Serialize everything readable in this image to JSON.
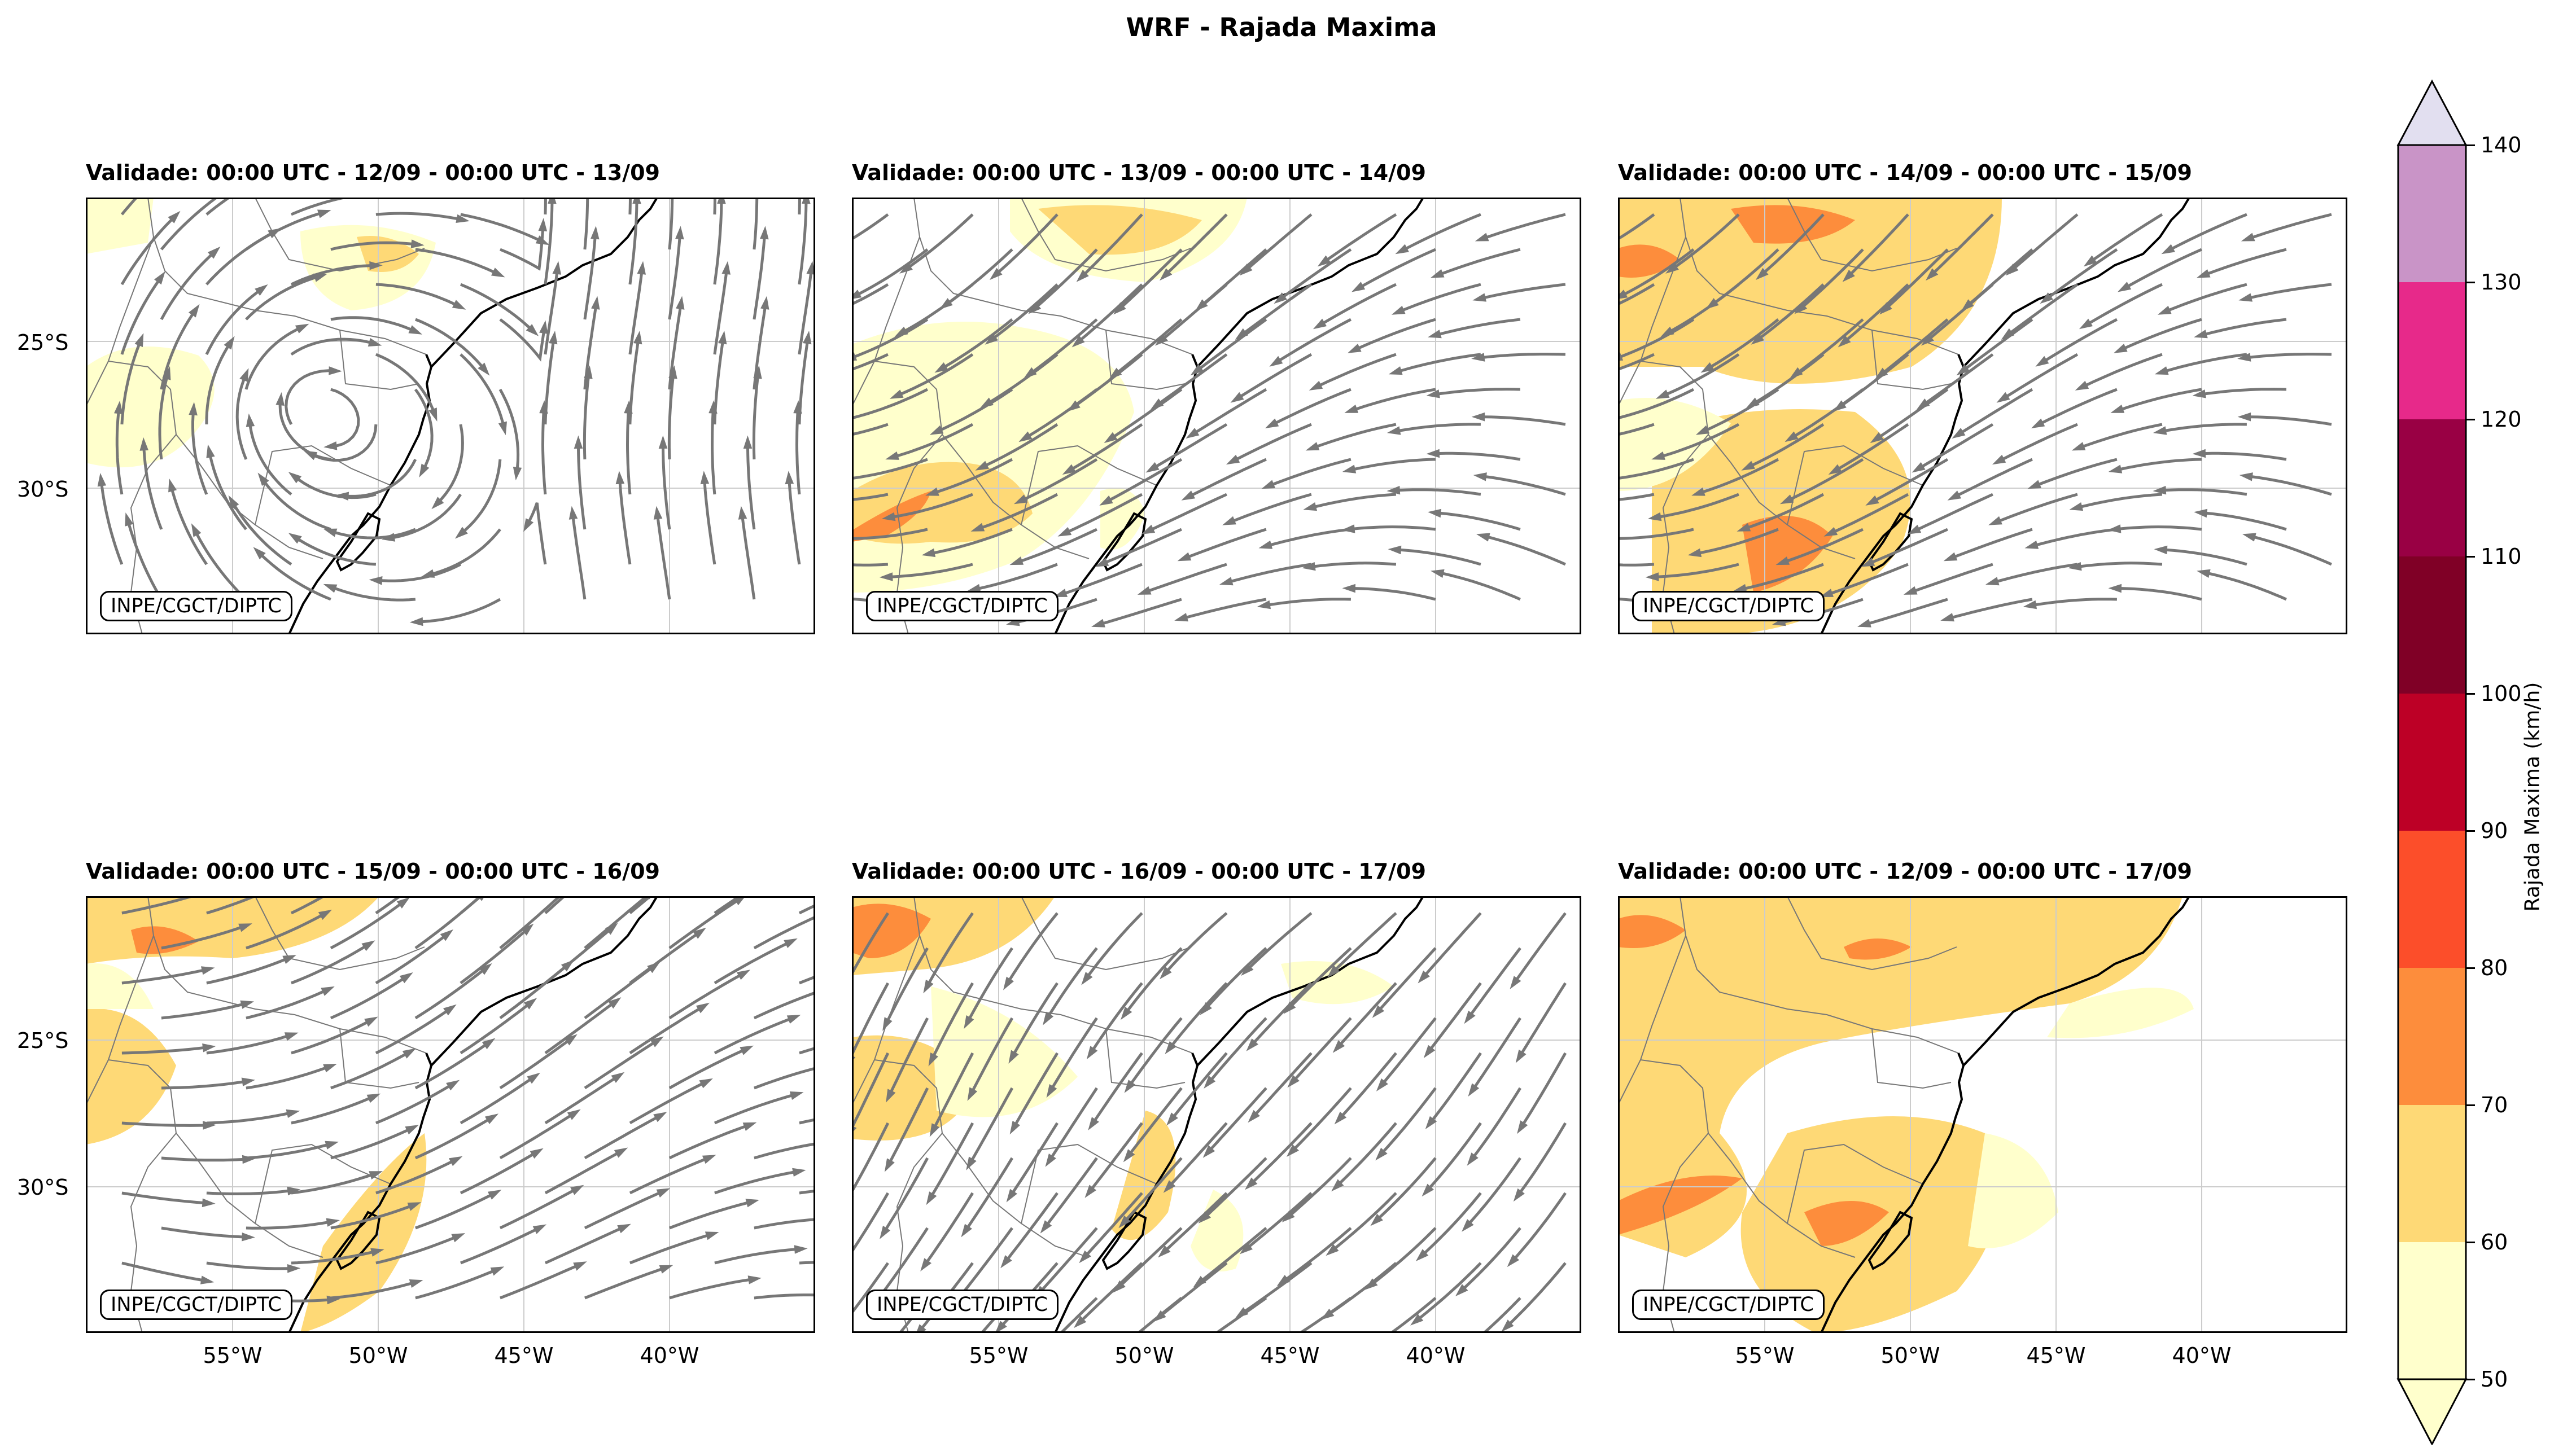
{
  "figure": {
    "title": "WRF - Rajada Maxima"
  },
  "panels": [
    {
      "title": "Validade: 00:00 UTC - 12/09 - 00:00 UTC - 13/09",
      "credit": "INPE/CGCT/DIPTC",
      "flow": "cyclonic"
    },
    {
      "title": "Validade: 00:00 UTC - 13/09 - 00:00 UTC - 14/09",
      "credit": "INPE/CGCT/DIPTC",
      "flow": "westward"
    },
    {
      "title": "Validade: 00:00 UTC - 14/09 - 00:00 UTC - 15/09",
      "credit": "INPE/CGCT/DIPTC",
      "flow": "westward"
    },
    {
      "title": "Validade: 00:00 UTC - 15/09 - 00:00 UTC - 16/09",
      "credit": "INPE/CGCT/DIPTC",
      "flow": "eastward"
    },
    {
      "title": "Validade: 00:00 UTC - 16/09 - 00:00 UTC - 17/09",
      "credit": "INPE/CGCT/DIPTC",
      "flow": "southwest"
    },
    {
      "title": "Validade: 00:00 UTC - 12/09 - 00:00 UTC - 17/09",
      "credit": "INPE/CGCT/DIPTC",
      "flow": "none"
    }
  ],
  "axes": {
    "lat_labels": [
      "25°S",
      "30°S"
    ],
    "lon_labels": [
      "55°W",
      "50°W",
      "45°W",
      "40°W"
    ]
  },
  "colorbar": {
    "label": "Rajada Maxima (km/h)",
    "ticks": [
      "50",
      "60",
      "70",
      "80",
      "90",
      "100",
      "110",
      "120",
      "130",
      "140"
    ],
    "colors": [
      "#ffffcc",
      "#fed976",
      "#fd8d3c",
      "#fc4e2a",
      "#bd0026",
      "#800026",
      "#990044",
      "#e7298a",
      "#c994c7",
      "#e2dff0"
    ]
  }
}
